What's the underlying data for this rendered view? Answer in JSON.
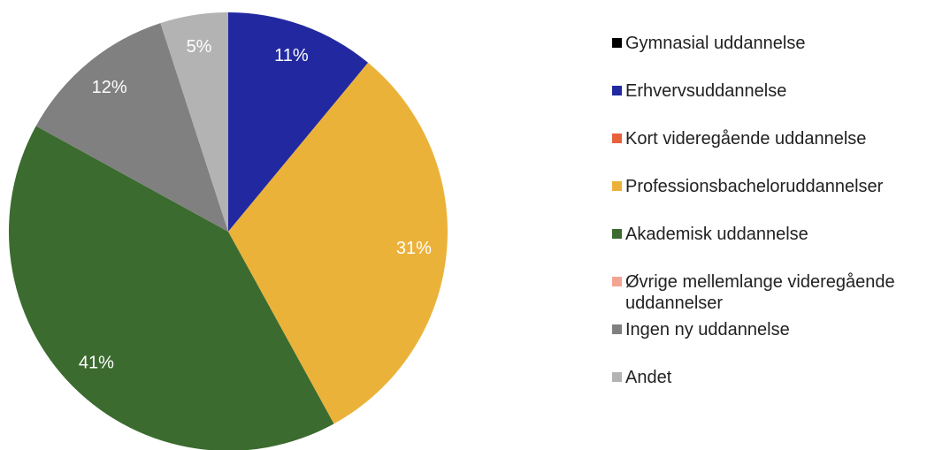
{
  "chart_data": {
    "type": "pie",
    "categories": [
      "Gymnasial uddannelse",
      "Erhvervsuddannelse",
      "Kort videregående uddannelse",
      "Professionsbacheloruddannelser",
      "Akademisk uddannelse",
      "Øvrige mellemlange videregående uddannelser",
      "Ingen ny uddannelse",
      "Andet"
    ],
    "values": [
      0,
      11,
      0,
      31,
      41,
      0,
      12,
      5
    ],
    "value_labels": [
      null,
      "11%",
      null,
      "31%",
      "41%",
      null,
      "12%",
      "5%"
    ],
    "colors": [
      "#000000",
      "#2229a0",
      "#e8603c",
      "#ebb23a",
      "#3b6b2f",
      "#f4a493",
      "#808080",
      "#b3b3b3"
    ],
    "legend": "right"
  }
}
